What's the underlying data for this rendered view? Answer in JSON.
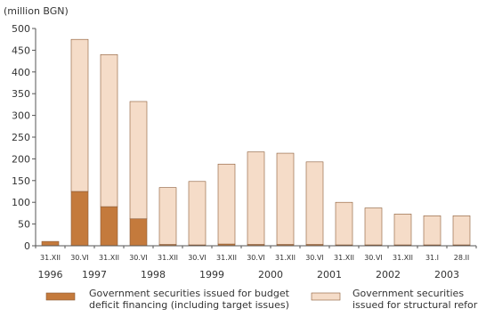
{
  "chart_data": {
    "type": "bar",
    "stacked": true,
    "ylabel": "(million BGN)",
    "ylim": [
      0,
      500
    ],
    "ystep": 50,
    "grid": false,
    "categories": [
      "31.XII",
      "30.VI",
      "31.XII",
      "30.VI",
      "31.XII",
      "30.VI",
      "31.XII",
      "30.VI",
      "31.XII",
      "30.VI",
      "31.XII",
      "30.VI",
      "31.XII",
      "31.I",
      "28.II"
    ],
    "years": [
      {
        "label": "1996",
        "start": 0,
        "end": 0
      },
      {
        "label": "1997",
        "start": 1,
        "end": 2
      },
      {
        "label": "1998",
        "start": 3,
        "end": 4
      },
      {
        "label": "1999",
        "start": 5,
        "end": 6
      },
      {
        "label": "2000",
        "start": 7,
        "end": 8
      },
      {
        "label": "2001",
        "start": 9,
        "end": 10
      },
      {
        "label": "2002",
        "start": 11,
        "end": 12
      },
      {
        "label": "2003",
        "start": 13,
        "end": 14
      }
    ],
    "series": [
      {
        "name": "Government securities issued for budget deficit financing (including target issues)",
        "legend_lines": [
          "Government securities issued for budget",
          "deficit financing (including target issues)"
        ],
        "color": "#c47a3c",
        "values": [
          10,
          125,
          90,
          62,
          3,
          2,
          4,
          3,
          3,
          3,
          2,
          2,
          2,
          2,
          2
        ]
      },
      {
        "name": "Government securities issued for structural reform",
        "legend_lines": [
          "Government securities",
          "issued for structural reform"
        ],
        "color": "#f5dcc8",
        "values": [
          0,
          350,
          350,
          270,
          131,
          146,
          184,
          213,
          210,
          190,
          98,
          85,
          71,
          67,
          67
        ]
      }
    ]
  }
}
